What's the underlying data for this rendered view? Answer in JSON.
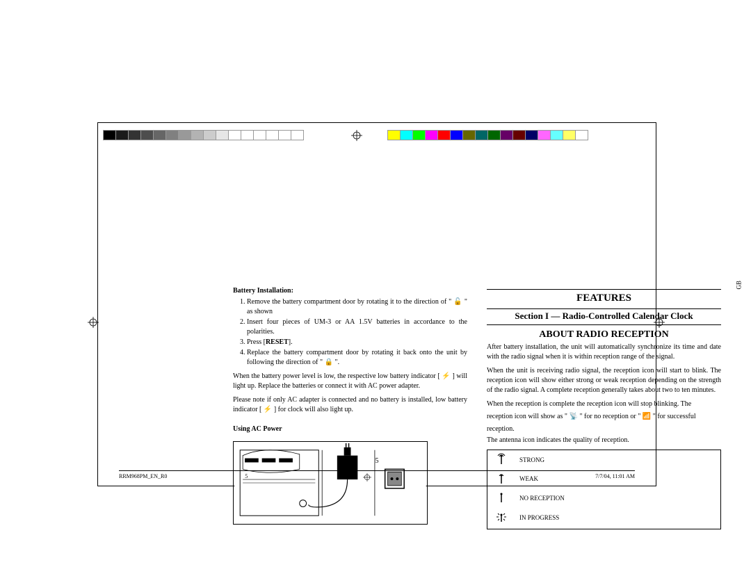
{
  "colorBarLeft": [
    "#000000",
    "#1a1a1a",
    "#333333",
    "#4d4d4d",
    "#666666",
    "#808080",
    "#999999",
    "#b3b3b3",
    "#cccccc",
    "#e6e6e6",
    "#ffffff",
    "#ffffff",
    "#ffffff",
    "#ffffff",
    "#ffffff",
    "#ffffff"
  ],
  "colorBarRight": [
    "#ffff00",
    "#00ffff",
    "#00ff00",
    "#ff00ff",
    "#ff0000",
    "#0000ff",
    "#666600",
    "#006666",
    "#006600",
    "#660066",
    "#660000",
    "#000066",
    "#ff66ff",
    "#66ffff",
    "#ffff66",
    "#ffffff"
  ],
  "left": {
    "batteryHeading": "Battery Installation:",
    "steps": [
      "Remove the battery compartment door by rotating it to the direction of \" 🔓 \" as shown",
      "Insert four pieces of UM-3 or AA 1.5V batteries in accordance to the polarities.",
      "Press [RESET].",
      "Replace the battery compartment door by rotating it back onto the unit by following the direction of \" 🔒 \"."
    ],
    "lowBattery": "When the battery power level is low, the respective low battery indicator [ ⚡ ] will light up.  Replace the batteries or connect it with AC power adapter.",
    "note": "Please note if only AC adapter is connected and no battery is installed, low battery indicator [ ⚡ ] for clock will also light up.",
    "acHeading": "Using AC Power"
  },
  "right": {
    "gb": "GB",
    "features": "FEATURES",
    "section": "Section I — Radio-Controlled Calendar Clock",
    "about": "ABOUT RADIO RECEPTION",
    "p1": "After battery installation, the unit will automatically synchronize its time and date with the radio signal when it is within reception range of the signal.",
    "p2": "When the unit is receiving radio signal, the reception icon will start to blink. The reception icon will show either strong or weak reception depending on the strength of the radio signal. A complete reception generally takes about two to ten minutes.",
    "p3a": "When the reception is complete the reception icon will stop blinking. The",
    "p3b": "reception icon will show as \"  📡  \" for no reception or  \"  📶  \" for successful",
    "p3c": "reception.",
    "p4": "The antenna icon indicates the quality of reception.",
    "rows": [
      {
        "label": "STRONG"
      },
      {
        "label": "WEAK"
      },
      {
        "label": "NO  RECEPTION"
      },
      {
        "label": "IN PROGRESS"
      }
    ]
  },
  "pageNum": "5",
  "footer": {
    "left": "RRM968PM_EN_R0",
    "mid": "5",
    "right": "7/7/04, 11:01 AM"
  }
}
